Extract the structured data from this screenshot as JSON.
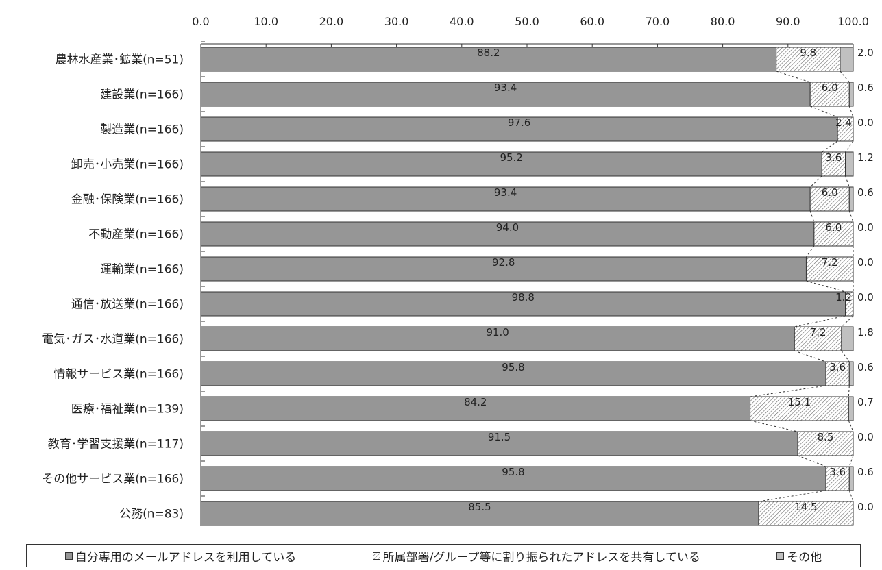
{
  "chart_data": {
    "type": "bar",
    "orientation": "horizontal",
    "stacked": true,
    "xlim": [
      0,
      100
    ],
    "x_ticks": [
      "0.0",
      "10.0",
      "20.0",
      "30.0",
      "40.0",
      "50.0",
      "60.0",
      "70.0",
      "80.0",
      "90.0",
      "100.0"
    ],
    "categories": [
      "農林水産業･鉱業(n=51)",
      "建設業(n=166)",
      "製造業(n=166)",
      "卸売･小売業(n=166)",
      "金融･保険業(n=166)",
      "不動産業(n=166)",
      "運輸業(n=166)",
      "通信･放送業(n=166)",
      "電気･ガス･水道業(n=166)",
      "情報サービス業(n=166)",
      "医療･福祉業(n=139)",
      "教育･学習支援業(n=117)",
      "その他サービス業(n=166)",
      "公務(n=83)"
    ],
    "series": [
      {
        "name": "自分専用のメールアドレスを利用している",
        "color": "#969696",
        "values": [
          88.2,
          93.4,
          97.6,
          95.2,
          93.4,
          94.0,
          92.8,
          98.8,
          91.0,
          95.8,
          84.2,
          91.5,
          95.8,
          85.5
        ],
        "labels": [
          "88.2",
          "93.4",
          "97.6",
          "95.2",
          "93.4",
          "94.0",
          "92.8",
          "98.8",
          "91.0",
          "95.8",
          "84.2",
          "91.5",
          "95.8",
          "85.5"
        ]
      },
      {
        "name": "所属部署/グループ等に割り振られたアドレスを共有している",
        "color": "#ffffff",
        "pattern": "hatch",
        "values": [
          9.8,
          6.0,
          2.4,
          3.6,
          6.0,
          6.0,
          7.2,
          1.2,
          7.2,
          3.6,
          15.1,
          8.5,
          3.6,
          14.5
        ],
        "labels": [
          "9.8",
          "6.0",
          "2.4",
          "3.6",
          "6.0",
          "6.0",
          "7.2",
          "1.2",
          "7.2",
          "3.6",
          "15.1",
          "8.5",
          "3.6",
          "14.5"
        ]
      },
      {
        "name": "その他",
        "color": "#c0c0c0",
        "values": [
          2.0,
          0.6,
          0.0,
          1.2,
          0.6,
          0.0,
          0.0,
          0.0,
          1.8,
          0.6,
          0.7,
          0.0,
          0.6,
          0.0
        ],
        "labels": [
          "2.0",
          "0.6",
          "0.0",
          "1.2",
          "0.6",
          "0.0",
          "0.0",
          "0.0",
          "1.8",
          "0.6",
          "0.7",
          "0.0",
          "0.6",
          "0.0"
        ]
      }
    ],
    "legend_position": "bottom",
    "series_connector_lines": "dashed"
  },
  "legend": {
    "items": [
      {
        "label": "自分専用のメールアドレスを利用している",
        "color": "#969696",
        "icon": "solid-square"
      },
      {
        "label": "所属部署/グループ等に割り振られたアドレスを共有している",
        "color": "#ffffff",
        "icon": "hatched-square"
      },
      {
        "label": "その他",
        "color": "#c0c0c0",
        "icon": "solid-square"
      }
    ]
  }
}
